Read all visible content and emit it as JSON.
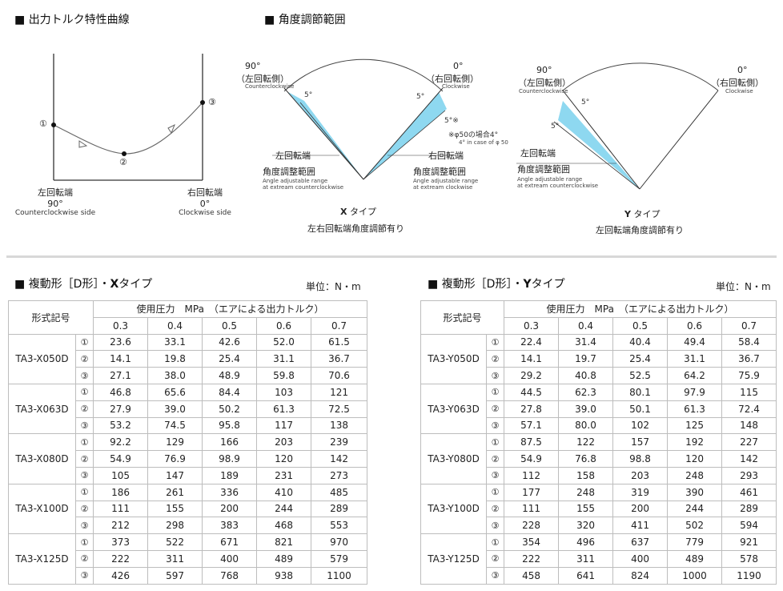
{
  "section_torque": {
    "title": "出力トルク特性曲線"
  },
  "section_angle": {
    "title": "角度調節範囲"
  },
  "torque_curve": {
    "left_jp": "左回転端",
    "left_deg": "90°",
    "left_en": "Counterclockwise side",
    "right_jp": "右回転端",
    "right_deg": "0°",
    "right_en": "Clockwise side",
    "p1": "①",
    "p2": "②",
    "p3": "③"
  },
  "x_type": {
    "deg90": "90°",
    "ccw_jp": "（左回転側）",
    "ccw_en": "Counterclockwise",
    "deg0": "0°",
    "cw_jp": "（右回転側）",
    "cw_en": "Clockwise",
    "five_a": "5°",
    "five_b": "5°",
    "five_c": "5°※",
    "note_jp": "※φ50の場合4°",
    "note_en": "4° in case of φ 50",
    "left_end": "左回転端",
    "left_range": "角度調整範囲",
    "left_range_en1": "Angle adjustable range",
    "left_range_en2": "at extream counterclockwise",
    "right_end": "右回転端",
    "right_range": "角度調整範囲",
    "right_range_en1": "Angle adjustable range",
    "right_range_en2": "at extream clockwise",
    "type_letter": "X",
    "type_suffix": "タイプ",
    "caption": "左右回転端角度調節有り"
  },
  "y_type": {
    "deg90": "90°",
    "ccw_jp": "（左回転側）",
    "ccw_en": "Counterclockwise",
    "deg0": "0°",
    "cw_jp": "（右回転側）",
    "cw_en": "Clockwise",
    "five_a": "5°",
    "five_b": "5°",
    "left_end": "左回転端",
    "left_range": "角度調整範囲",
    "left_range_en1": "Angle adjustable range",
    "left_range_en2": "at extream counterclockwise",
    "type_letter": "Y",
    "type_suffix": "タイプ",
    "caption": "左回転端角度調節有り"
  },
  "table_x": {
    "title_pre": "複動形［D形］・",
    "title_letter": "X",
    "title_post": "タイプ",
    "unit": "単位：N・m",
    "head_model": "形式記号",
    "head_pressure": "使用圧力　MPa　（エアによる出力トルク）",
    "pressures": [
      "0.3",
      "0.4",
      "0.5",
      "0.6",
      "0.7"
    ],
    "points": [
      "①",
      "②",
      "③"
    ],
    "models": [
      {
        "name": "TA3-X050D",
        "rows": [
          [
            "23.6",
            "33.1",
            "42.6",
            "52.0",
            "61.5"
          ],
          [
            "14.1",
            "19.8",
            "25.4",
            "31.1",
            "36.7"
          ],
          [
            "27.1",
            "38.0",
            "48.9",
            "59.8",
            "70.6"
          ]
        ]
      },
      {
        "name": "TA3-X063D",
        "rows": [
          [
            "46.8",
            "65.6",
            "84.4",
            "103",
            "121"
          ],
          [
            "27.9",
            "39.0",
            "50.2",
            "61.3",
            "72.5"
          ],
          [
            "53.2",
            "74.5",
            "95.8",
            "117",
            "138"
          ]
        ]
      },
      {
        "name": "TA3-X080D",
        "rows": [
          [
            "92.2",
            "129",
            "166",
            "203",
            "239"
          ],
          [
            "54.9",
            "76.9",
            "98.9",
            "120",
            "142"
          ],
          [
            "105",
            "147",
            "189",
            "231",
            "273"
          ]
        ]
      },
      {
        "name": "TA3-X100D",
        "rows": [
          [
            "186",
            "261",
            "336",
            "410",
            "485"
          ],
          [
            "111",
            "155",
            "200",
            "244",
            "289"
          ],
          [
            "212",
            "298",
            "383",
            "468",
            "553"
          ]
        ]
      },
      {
        "name": "TA3-X125D",
        "rows": [
          [
            "373",
            "522",
            "671",
            "821",
            "970"
          ],
          [
            "222",
            "311",
            "400",
            "489",
            "579"
          ],
          [
            "426",
            "597",
            "768",
            "938",
            "1100"
          ]
        ]
      }
    ]
  },
  "table_y": {
    "title_pre": "複動形［D形］・",
    "title_letter": "Y",
    "title_post": "タイプ",
    "unit": "単位：N・m",
    "head_model": "形式記号",
    "head_pressure": "使用圧力　MPa　（エアによる出力トルク）",
    "pressures": [
      "0.3",
      "0.4",
      "0.5",
      "0.6",
      "0.7"
    ],
    "points": [
      "①",
      "②",
      "③"
    ],
    "models": [
      {
        "name": "TA3-Y050D",
        "rows": [
          [
            "22.4",
            "31.4",
            "40.4",
            "49.4",
            "58.4"
          ],
          [
            "14.1",
            "19.7",
            "25.4",
            "31.1",
            "36.7"
          ],
          [
            "29.2",
            "40.8",
            "52.5",
            "64.2",
            "75.9"
          ]
        ]
      },
      {
        "name": "TA3-Y063D",
        "rows": [
          [
            "44.5",
            "62.3",
            "80.1",
            "97.9",
            "115"
          ],
          [
            "27.8",
            "39.0",
            "50.1",
            "61.3",
            "72.4"
          ],
          [
            "57.1",
            "80.0",
            "102",
            "125",
            "148"
          ]
        ]
      },
      {
        "name": "TA3-Y080D",
        "rows": [
          [
            "87.5",
            "122",
            "157",
            "192",
            "227"
          ],
          [
            "54.9",
            "76.8",
            "98.8",
            "120",
            "142"
          ],
          [
            "112",
            "158",
            "203",
            "248",
            "293"
          ]
        ]
      },
      {
        "name": "TA3-Y100D",
        "rows": [
          [
            "177",
            "248",
            "319",
            "390",
            "461"
          ],
          [
            "111",
            "155",
            "200",
            "244",
            "289"
          ],
          [
            "228",
            "320",
            "411",
            "502",
            "594"
          ]
        ]
      },
      {
        "name": "TA3-Y125D",
        "rows": [
          [
            "354",
            "496",
            "637",
            "779",
            "921"
          ],
          [
            "222",
            "311",
            "400",
            "489",
            "578"
          ],
          [
            "458",
            "641",
            "824",
            "1000",
            "1190"
          ]
        ]
      }
    ]
  }
}
